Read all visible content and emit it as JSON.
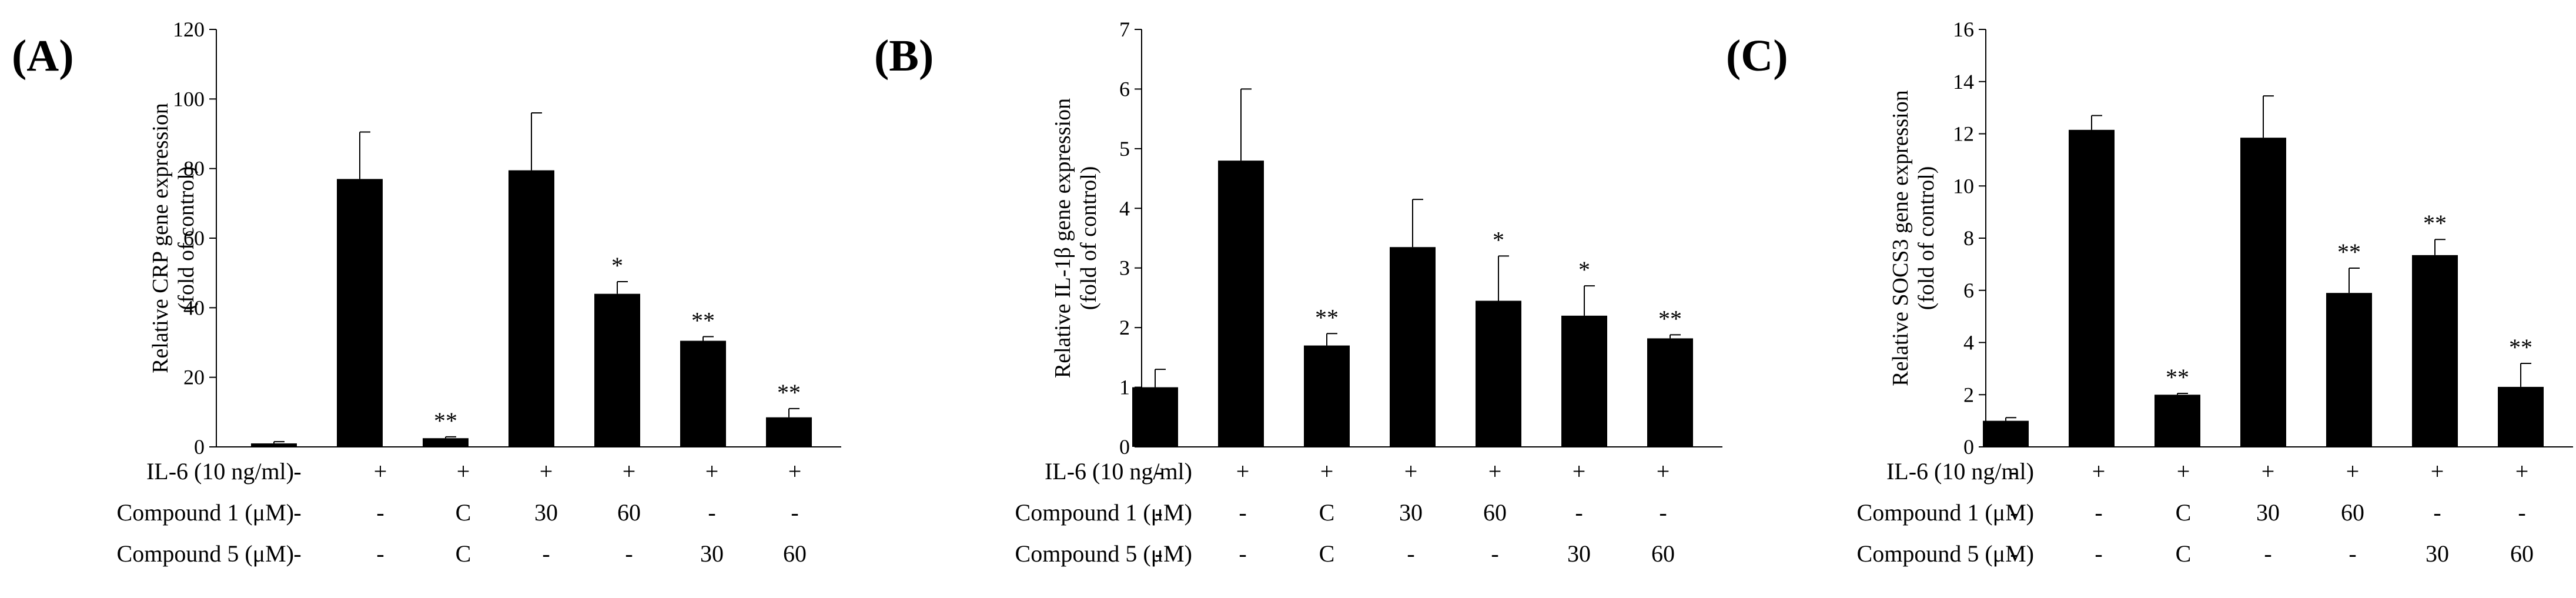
{
  "chart_data": [
    {
      "type": "bar",
      "panel": "(A)",
      "ylabel": "Relative CRP gene expression",
      "ylabel2": "(fold of control)",
      "ylim": [
        0,
        120
      ],
      "ticks": [
        0,
        20,
        40,
        60,
        80,
        100,
        120
      ],
      "values": [
        1,
        77,
        2.5,
        79.5,
        44,
        30.5,
        8.5
      ],
      "errors": [
        0.5,
        13.5,
        0.4,
        16.5,
        3.5,
        1.2,
        2.5
      ],
      "significance": [
        "",
        "",
        "**",
        "",
        "*",
        "**",
        "**"
      ]
    },
    {
      "type": "bar",
      "panel": "(B)",
      "ylabel": "Relative IL-1β gene expression",
      "ylabel2": "(fold of control)",
      "ylim": [
        0,
        7
      ],
      "ticks": [
        0,
        1,
        2,
        3,
        4,
        5,
        6,
        7
      ],
      "values": [
        1.0,
        4.8,
        1.7,
        3.35,
        2.45,
        2.2,
        1.82
      ],
      "errors": [
        0.3,
        1.2,
        0.2,
        0.8,
        0.75,
        0.5,
        0.06
      ],
      "significance": [
        "",
        "",
        "**",
        "",
        "*",
        "*",
        "**"
      ]
    },
    {
      "type": "bar",
      "panel": "(C)",
      "ylabel": "Relative SOCS3 gene expression",
      "ylabel2": "(fold of control)",
      "ylim": [
        0,
        16
      ],
      "ticks": [
        0,
        2,
        4,
        6,
        8,
        10,
        12,
        14,
        16
      ],
      "values": [
        1.0,
        12.15,
        2.0,
        11.85,
        5.9,
        7.35,
        2.3
      ],
      "errors": [
        0.12,
        0.55,
        0.05,
        1.6,
        0.95,
        0.6,
        0.9
      ],
      "significance": [
        "",
        "",
        "**",
        "",
        "**",
        "**",
        "**"
      ]
    }
  ],
  "conditions": {
    "rows": [
      {
        "label": "IL-6 (10 ng/ml)",
        "cells": [
          "-",
          "+",
          "+",
          "+",
          "+",
          "+",
          "+"
        ]
      },
      {
        "label": "Compound 1 (μM)",
        "cells": [
          "-",
          "-",
          "C",
          "30",
          "60",
          "-",
          "-"
        ]
      },
      {
        "label": "Compound 5 (μM)",
        "cells": [
          "-",
          "-",
          "C",
          "-",
          "-",
          "30",
          "60"
        ]
      }
    ]
  }
}
